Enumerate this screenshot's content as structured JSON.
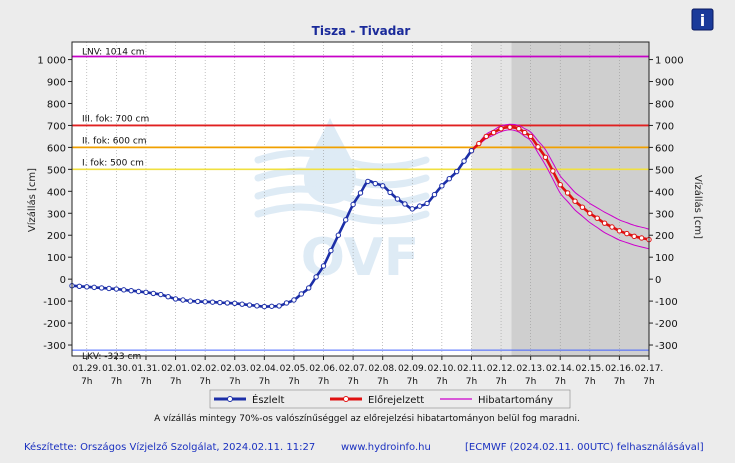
{
  "colors": {
    "background": "#ececec",
    "observed": "#1c2fa8",
    "forecast": "#e01010",
    "error_band": "#cc00cc",
    "lnv": "#c800c8",
    "level3": "#e02020",
    "level2": "#f0a000",
    "level1": "#f0e040",
    "lkv": "#4060ff",
    "forecast_shade_light": "#e4e4e4",
    "forecast_shade_dark": "#cfcfcf",
    "info_button": "#1a3a9a",
    "footer_text": "#1a30c0"
  },
  "header": {
    "title": "Tisza - Tivadar",
    "info_icon": "info-icon",
    "info_glyph": "i"
  },
  "legend": {
    "observed": "Észlelt",
    "forecast": "Előrejelzett",
    "error_band": "Hibatartomány"
  },
  "note": "A vízállás mintegy 70%-os valószínűséggel az előrejelzési hibatartományon belül fog maradni.",
  "footer": {
    "made_by": "Készítette: Országos Vízjelző Szolgálat, 2024.02.11. 11:27",
    "website": "www.hydroinfo.hu",
    "source": "[ECMWF (2024.02.11. 00UTC) felhasználásával]"
  },
  "watermark": "OVF",
  "chart_data": {
    "type": "line",
    "title": "Tisza - Tivadar",
    "ylabel_left": "Vízállás [cm]",
    "ylabel_right": "Vízállás [cm]",
    "ylim": [
      -350,
      1080
    ],
    "yticks": [
      -300,
      -200,
      -100,
      0,
      100,
      200,
      300,
      400,
      500,
      600,
      700,
      800,
      900,
      1000
    ],
    "ytick_labels": [
      "-300",
      "-200",
      "-100",
      "0",
      "100",
      "200",
      "300",
      "400",
      "500",
      "600",
      "700",
      "800",
      "900",
      "1 000"
    ],
    "x_unit": "day index from 01.29. 7h",
    "xlim": [
      -0.5,
      19
    ],
    "xticks": [
      {
        "date": "01.29.",
        "hour": "7h"
      },
      {
        "date": "01.30.",
        "hour": "7h"
      },
      {
        "date": "01.31.",
        "hour": "7h"
      },
      {
        "date": "02.01.",
        "hour": "7h"
      },
      {
        "date": "02.02.",
        "hour": "7h"
      },
      {
        "date": "02.03.",
        "hour": "7h"
      },
      {
        "date": "02.04.",
        "hour": "7h"
      },
      {
        "date": "02.05.",
        "hour": "7h"
      },
      {
        "date": "02.06.",
        "hour": "7h"
      },
      {
        "date": "02.07.",
        "hour": "7h"
      },
      {
        "date": "02.08.",
        "hour": "7h"
      },
      {
        "date": "02.09.",
        "hour": "7h"
      },
      {
        "date": "02.10.",
        "hour": "7h"
      },
      {
        "date": "02.11.",
        "hour": "7h"
      },
      {
        "date": "02.12.",
        "hour": "7h"
      },
      {
        "date": "02.13.",
        "hour": "7h"
      },
      {
        "date": "02.14.",
        "hour": "7h"
      },
      {
        "date": "02.15.",
        "hour": "7h"
      },
      {
        "date": "02.16.",
        "hour": "7h"
      },
      {
        "date": "02.17.",
        "hour": "7h"
      }
    ],
    "thresholds": [
      {
        "label": "LNV: 1014 cm",
        "value": 1014,
        "color_key": "lnv"
      },
      {
        "label": "III. fok: 700 cm",
        "value": 700,
        "color_key": "level3"
      },
      {
        "label": "II. fok: 600 cm",
        "value": 600,
        "color_key": "level2"
      },
      {
        "label": "I. fok: 500 cm",
        "value": 500,
        "color_key": "level1"
      },
      {
        "label": "LKV: -323 cm",
        "value": -323,
        "color_key": "lkv"
      }
    ],
    "forecast_period": {
      "start": 13,
      "mid": 14.35,
      "end": 19
    },
    "observed_anchors": [
      [
        -0.5,
        -30
      ],
      [
        0,
        -35
      ],
      [
        1,
        -45
      ],
      [
        2,
        -60
      ],
      [
        2.5,
        -70
      ],
      [
        3,
        -90
      ],
      [
        3.5,
        -100
      ],
      [
        4,
        -103
      ],
      [
        5,
        -110
      ],
      [
        5.5,
        -118
      ],
      [
        6,
        -125
      ],
      [
        6.5,
        -122
      ],
      [
        7,
        -95
      ],
      [
        7.5,
        -40
      ],
      [
        8,
        60
      ],
      [
        8.5,
        200
      ],
      [
        9,
        340
      ],
      [
        9.5,
        445
      ],
      [
        10,
        425
      ],
      [
        10.5,
        365
      ],
      [
        11,
        320
      ],
      [
        11.5,
        345
      ],
      [
        12,
        425
      ],
      [
        12.5,
        490
      ],
      [
        13,
        585
      ]
    ],
    "forecast_anchors": [
      [
        13,
        585
      ],
      [
        13.5,
        650
      ],
      [
        14,
        685
      ],
      [
        14.3,
        692
      ],
      [
        14.6,
        685
      ],
      [
        15,
        650
      ],
      [
        15.5,
        555
      ],
      [
        16,
        430
      ],
      [
        16.5,
        355
      ],
      [
        17,
        300
      ],
      [
        17.5,
        255
      ],
      [
        18,
        220
      ],
      [
        18.5,
        195
      ],
      [
        19,
        180
      ]
    ],
    "error_upper_anchors": [
      [
        13,
        585
      ],
      [
        13.5,
        660
      ],
      [
        14,
        698
      ],
      [
        14.3,
        705
      ],
      [
        14.6,
        700
      ],
      [
        15,
        670
      ],
      [
        15.5,
        590
      ],
      [
        16,
        470
      ],
      [
        16.5,
        395
      ],
      [
        17,
        345
      ],
      [
        17.5,
        305
      ],
      [
        18,
        270
      ],
      [
        18.5,
        245
      ],
      [
        19,
        228
      ]
    ],
    "error_lower_anchors": [
      [
        13,
        585
      ],
      [
        13.5,
        640
      ],
      [
        14,
        672
      ],
      [
        14.3,
        680
      ],
      [
        14.6,
        670
      ],
      [
        15,
        630
      ],
      [
        15.5,
        520
      ],
      [
        16,
        392
      ],
      [
        16.5,
        315
      ],
      [
        17,
        258
      ],
      [
        17.5,
        212
      ],
      [
        18,
        178
      ],
      [
        18.5,
        155
      ],
      [
        19,
        138
      ]
    ],
    "grid": "vertical dotted per day",
    "legend_position": "bottom"
  }
}
